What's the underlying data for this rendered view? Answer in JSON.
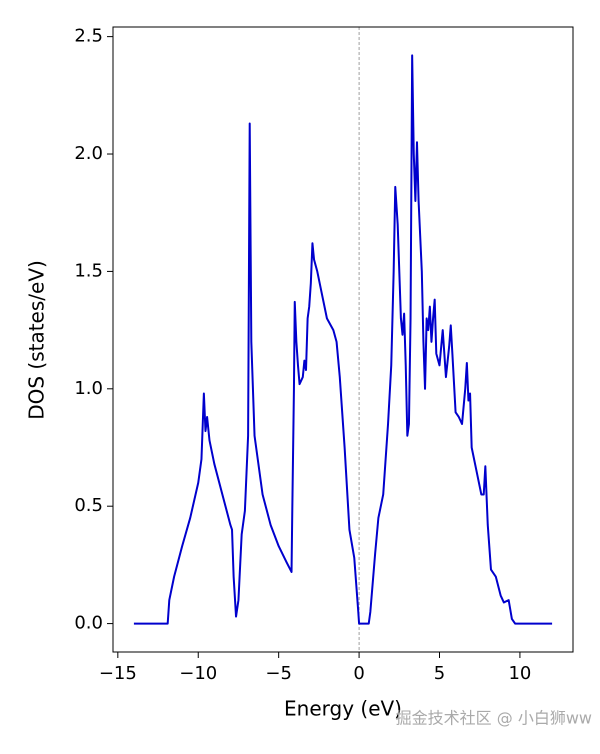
{
  "chart_data": {
    "type": "line",
    "xlabel": "Energy (eV)",
    "ylabel": "DOS (states/eV)",
    "color": "#0000cd",
    "vline_x": 0,
    "watermark": "掘金技术社区 @ 小白狮ww",
    "xlim": [
      -15.3,
      13.3
    ],
    "ylim": [
      -0.121,
      2.541
    ],
    "xticks": [
      {
        "value": -15,
        "label": "−15"
      },
      {
        "value": -10,
        "label": "−10"
      },
      {
        "value": -5,
        "label": "−5"
      },
      0,
      5,
      10
    ],
    "yticks": [
      {
        "value": 0,
        "label": "0.0"
      },
      0.5,
      {
        "value": 1,
        "label": "1.0"
      },
      1.5,
      {
        "value": 2,
        "label": "2.0"
      },
      2.5
    ],
    "x": [
      -14,
      -11.9,
      -11.8,
      -11.5,
      -11,
      -10.5,
      -10,
      -9.8,
      -9.65,
      -9.55,
      -9.45,
      -9.3,
      -9,
      -8.5,
      -8,
      -7.9,
      -7.8,
      -7.65,
      -7.5,
      -7.3,
      -7.1,
      -6.9,
      -6.8,
      -6.7,
      -6.5,
      -6,
      -5.5,
      -5,
      -4.5,
      -4.2,
      -4.15,
      -4.05,
      -4.0,
      -3.9,
      -3.8,
      -3.7,
      -3.5,
      -3.4,
      -3.3,
      -3.2,
      -3.1,
      -3.0,
      -2.9,
      -2.8,
      -2.6,
      -2.3,
      -2.0,
      -1.6,
      -1.4,
      -1.2,
      -0.9,
      -0.6,
      -0.3,
      -0.05,
      0.0,
      0.6,
      0.7,
      1.0,
      1.2,
      1.5,
      1.8,
      2.0,
      2.15,
      2.25,
      2.4,
      2.6,
      2.7,
      2.8,
      2.9,
      3.0,
      3.1,
      3.2,
      3.3,
      3.4,
      3.5,
      3.6,
      3.7,
      3.9,
      4.0,
      4.1,
      4.2,
      4.3,
      4.4,
      4.5,
      4.6,
      4.7,
      4.8,
      5.0,
      5.2,
      5.4,
      5.6,
      5.7,
      5.8,
      6.0,
      6.2,
      6.4,
      6.6,
      6.7,
      6.8,
      6.9,
      7.0,
      7.3,
      7.6,
      7.75,
      7.85,
      8.0,
      8.2,
      8.5,
      8.8,
      9.0,
      9.3,
      9.5,
      9.7,
      12
    ],
    "values": [
      0,
      0,
      0.1,
      0.2,
      0.33,
      0.45,
      0.6,
      0.7,
      0.98,
      0.82,
      0.88,
      0.78,
      0.68,
      0.55,
      0.42,
      0.4,
      0.2,
      0.03,
      0.1,
      0.38,
      0.48,
      0.8,
      2.13,
      1.2,
      0.8,
      0.55,
      0.42,
      0.33,
      0.26,
      0.22,
      0.5,
      1.0,
      1.37,
      1.2,
      1.1,
      1.02,
      1.05,
      1.12,
      1.08,
      1.3,
      1.35,
      1.45,
      1.62,
      1.55,
      1.5,
      1.4,
      1.3,
      1.25,
      1.2,
      1.05,
      0.75,
      0.4,
      0.28,
      0.05,
      0,
      0,
      0.05,
      0.3,
      0.45,
      0.55,
      0.85,
      1.1,
      1.5,
      1.86,
      1.7,
      1.3,
      1.23,
      1.32,
      1.1,
      0.8,
      0.85,
      1.3,
      2.42,
      2.0,
      1.8,
      2.05,
      1.8,
      1.5,
      1.2,
      1.0,
      1.3,
      1.25,
      1.35,
      1.2,
      1.3,
      1.38,
      1.15,
      1.1,
      1.25,
      1.05,
      1.18,
      1.27,
      1.15,
      0.9,
      0.88,
      0.85,
      1.0,
      1.11,
      0.95,
      0.98,
      0.75,
      0.65,
      0.55,
      0.55,
      0.67,
      0.42,
      0.23,
      0.2,
      0.12,
      0.09,
      0.1,
      0.02,
      0,
      0
    ]
  }
}
